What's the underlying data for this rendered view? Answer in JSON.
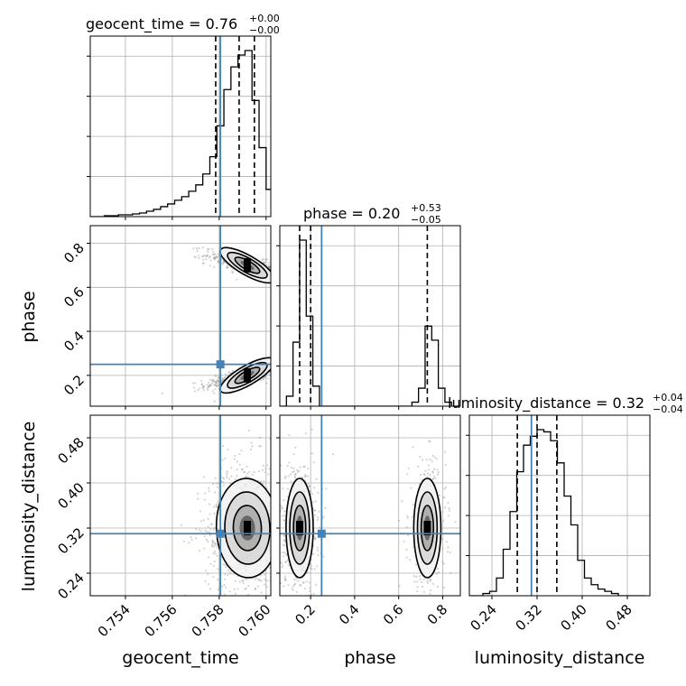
{
  "colors": {
    "truth": "#4682b4",
    "hist": "#000000",
    "grid": "#b0b0b0",
    "samples": "#808080"
  },
  "chart_data": {
    "type": "corner",
    "parameters": [
      "geocent_time",
      "phase",
      "luminosity_distance"
    ],
    "truths": {
      "geocent_time": 0.75805,
      "phase": 0.25,
      "luminosity_distance": 0.31
    },
    "ranges": {
      "geocent_time": [
        0.7525,
        0.7602
      ],
      "phase": [
        0.06,
        0.88
      ],
      "luminosity_distance": [
        0.2,
        0.52
      ]
    },
    "ticks": {
      "geocent_time": {
        "values": [
          0.754,
          0.756,
          0.758,
          0.76
        ],
        "labels": [
          "0.754",
          "0.756",
          "0.758",
          "0.760"
        ]
      },
      "phase": {
        "values": [
          0.2,
          0.4,
          0.6,
          0.8
        ],
        "labels": [
          "0.2",
          "0.4",
          "0.6",
          "0.8"
        ]
      },
      "luminosity_distance": {
        "values": [
          0.24,
          0.32,
          0.4,
          0.48
        ],
        "labels": [
          "0.24",
          "0.32",
          "0.40",
          "0.48"
        ]
      }
    },
    "titles": [
      {
        "param": "geocent_time",
        "main": "geocent_time = 0.76",
        "plus": "+0.00",
        "minus": "−0.00"
      },
      {
        "param": "phase",
        "main": "phase = 0.20",
        "plus": "+0.53",
        "minus": "−0.05"
      },
      {
        "param": "luminosity_distance",
        "main": "luminosity_distance = 0.32",
        "plus": "+0.04",
        "minus": "−0.04"
      }
    ],
    "quantiles": {
      "geocent_time": [
        0.75785,
        0.75885,
        0.7595
      ],
      "phase": [
        0.15,
        0.2,
        0.73
      ],
      "luminosity_distance": [
        0.285,
        0.32,
        0.355
      ]
    },
    "histograms": {
      "geocent_time": {
        "edges": [
          0.7525,
          0.7528,
          0.7531,
          0.7534,
          0.7537,
          0.754,
          0.7543,
          0.7546,
          0.7549,
          0.7552,
          0.7555,
          0.7558,
          0.7561,
          0.7564,
          0.7567,
          0.757,
          0.7573,
          0.7576,
          0.7579,
          0.7582,
          0.7585,
          0.7588,
          0.7591,
          0.7594,
          0.7597,
          0.76,
          0.7603
        ],
        "counts": [
          0,
          0,
          1,
          1,
          2,
          2,
          3,
          4,
          6,
          8,
          11,
          14,
          18,
          22,
          28,
          35,
          47,
          66,
          100,
          140,
          165,
          178,
          183,
          128,
          76,
          30
        ]
      },
      "phase": {
        "edges": [
          0.06,
          0.09,
          0.12,
          0.15,
          0.18,
          0.21,
          0.24,
          0.27,
          0.3,
          0.33,
          0.36,
          0.39,
          0.42,
          0.45,
          0.48,
          0.51,
          0.54,
          0.57,
          0.6,
          0.63,
          0.66,
          0.69,
          0.72,
          0.75,
          0.78,
          0.81,
          0.84,
          0.87
        ],
        "counts": [
          0,
          5,
          32,
          83,
          45,
          10,
          0,
          0,
          0,
          0,
          0,
          0,
          0,
          0,
          0,
          0,
          0,
          0,
          0,
          0,
          2,
          9,
          40,
          33,
          9,
          2,
          0
        ]
      },
      "luminosity_distance": {
        "edges": [
          0.2,
          0.212,
          0.224,
          0.236,
          0.248,
          0.26,
          0.272,
          0.284,
          0.296,
          0.308,
          0.32,
          0.332,
          0.344,
          0.356,
          0.368,
          0.38,
          0.392,
          0.404,
          0.416,
          0.428,
          0.44,
          0.452,
          0.464,
          0.476,
          0.488,
          0.5,
          0.512
        ],
        "counts": [
          0,
          0,
          1,
          2,
          8,
          21,
          38,
          56,
          68,
          72,
          75,
          74,
          70,
          60,
          45,
          32,
          16,
          8,
          5,
          3,
          2,
          1,
          0,
          0,
          0,
          0
        ]
      }
    },
    "axis_labels": {
      "geocent_time": "geocent_time",
      "phase": "phase",
      "luminosity_distance": "luminosity_distance"
    },
    "grid": true
  }
}
